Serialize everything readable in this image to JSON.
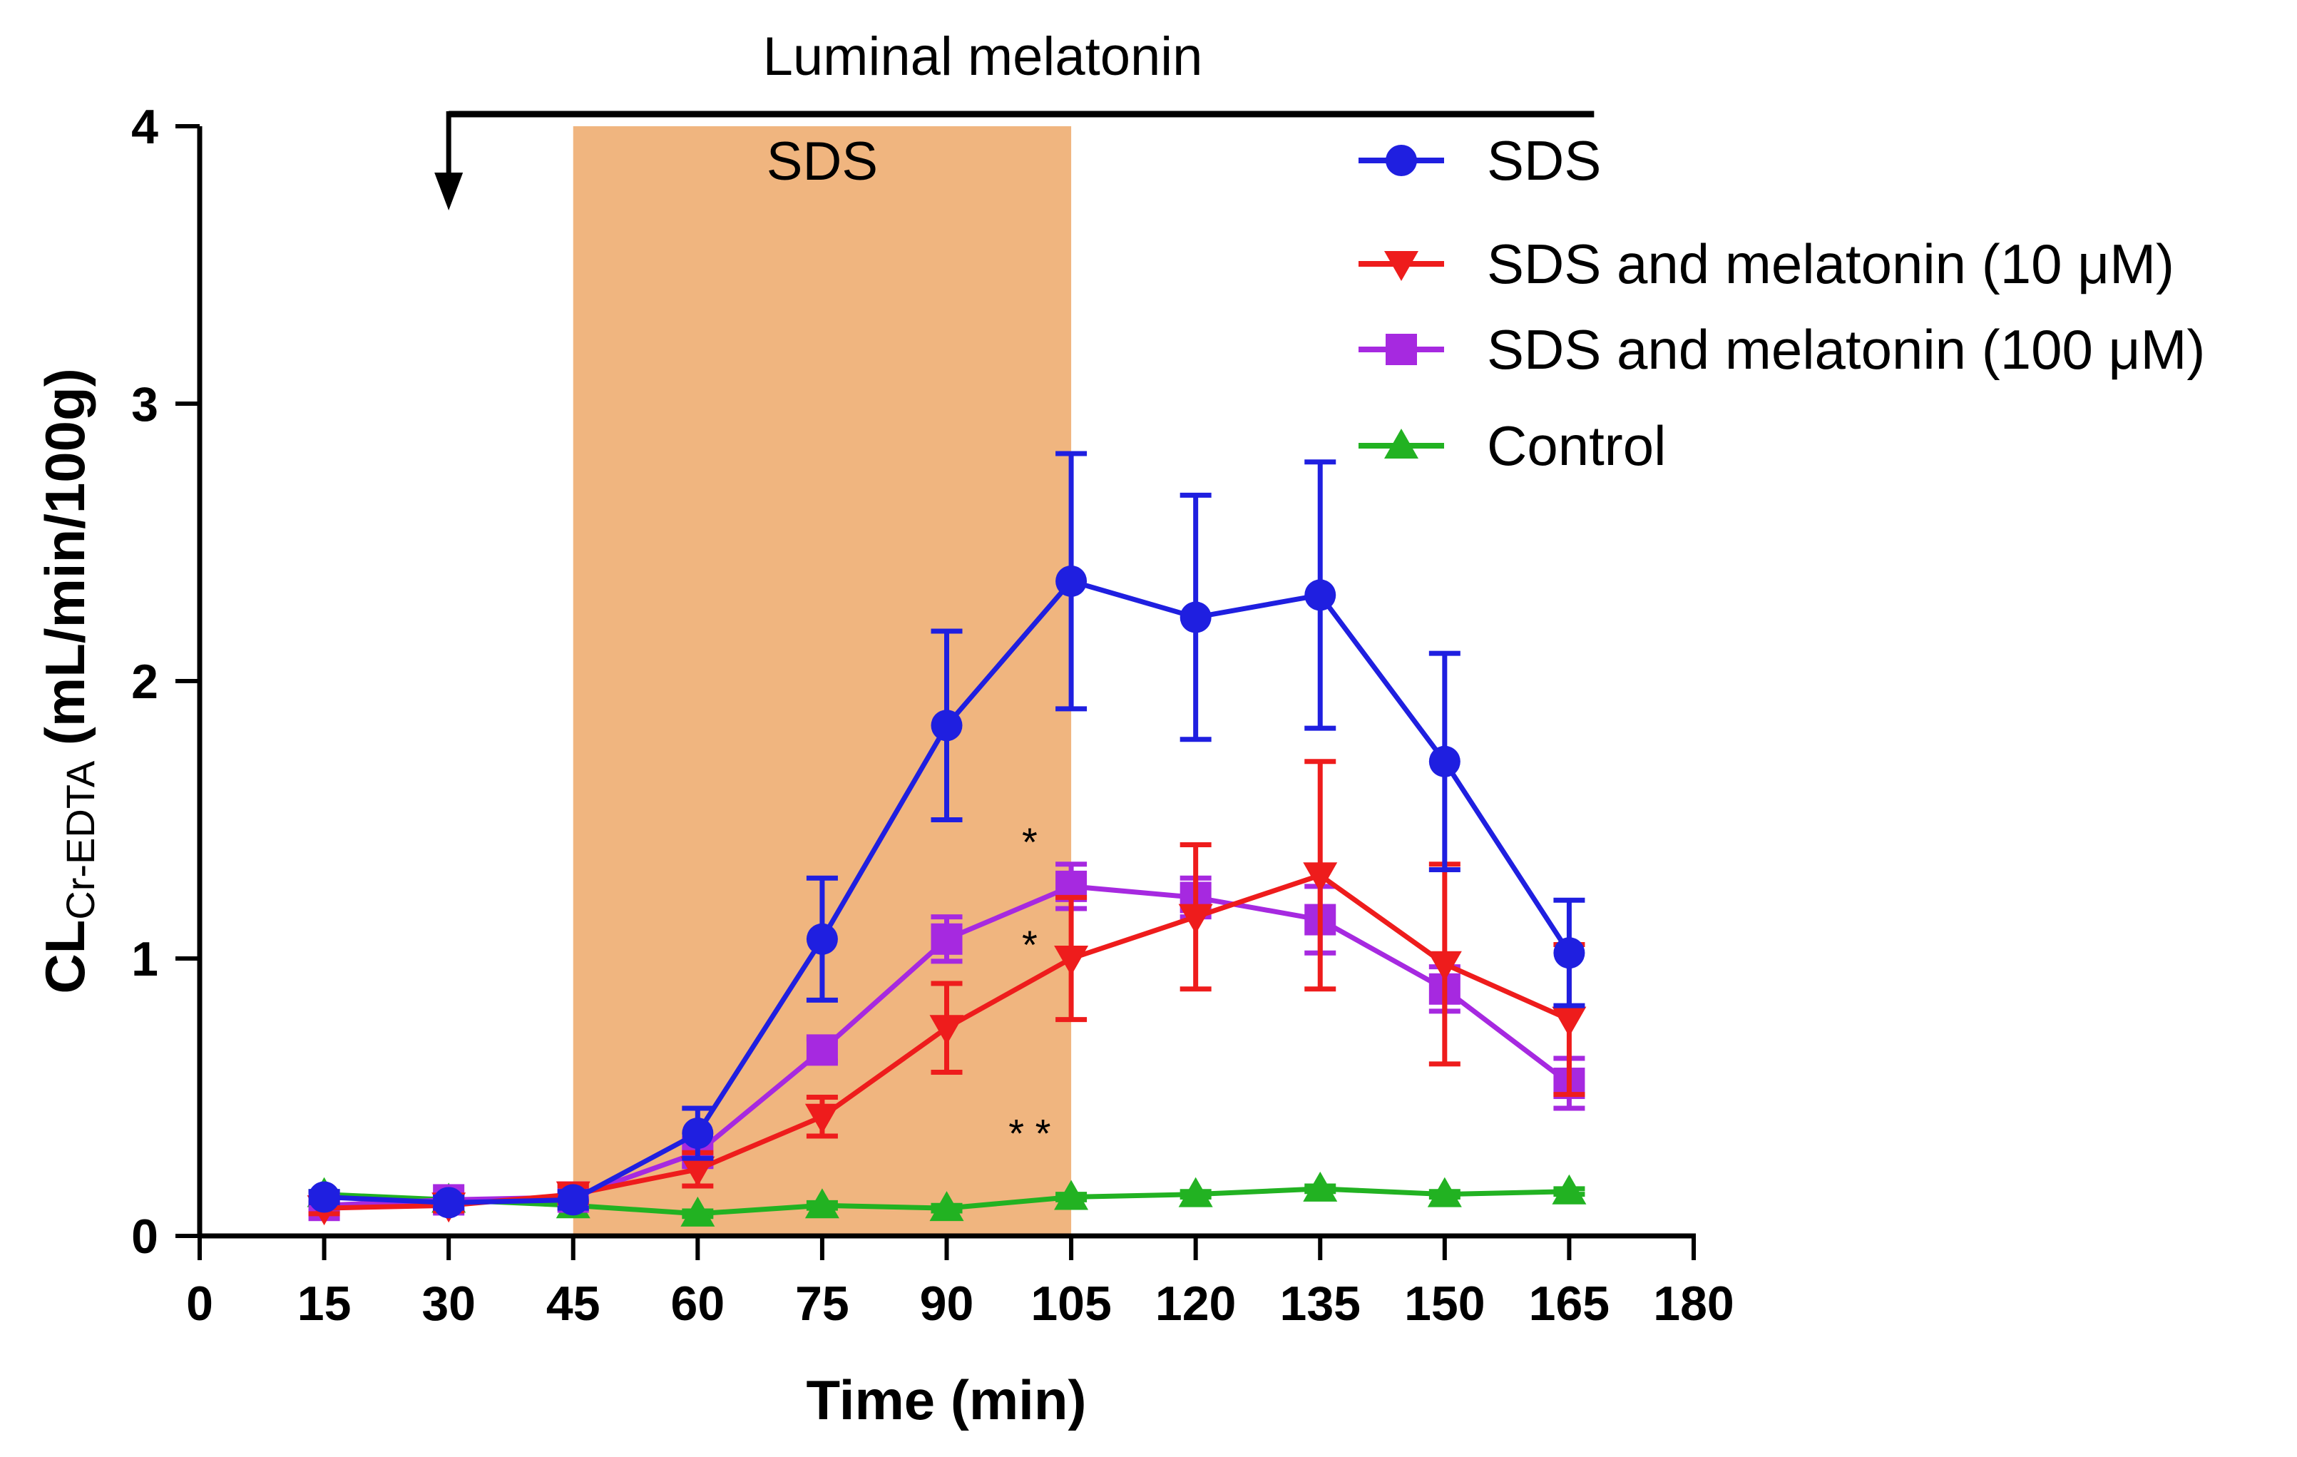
{
  "chart_data": {
    "type": "line",
    "title": "",
    "xlabel": "Time (min)",
    "ylabel_main": "CL",
    "ylabel_sub": "Cr-EDTA",
    "ylabel_units": " (mL/min/100g)",
    "xlim": [
      0,
      180
    ],
    "ylim": [
      0,
      4
    ],
    "xticks": [
      0,
      15,
      30,
      45,
      60,
      75,
      90,
      105,
      120,
      135,
      150,
      165,
      180
    ],
    "yticks": [
      0,
      1,
      2,
      3,
      4
    ],
    "grid": false,
    "legend_position": "top-right",
    "x": [
      15,
      30,
      45,
      60,
      75,
      90,
      105,
      120,
      135,
      150,
      165
    ],
    "series": [
      {
        "name": "SDS",
        "color": "#1f1fe0",
        "marker": "circle",
        "values": [
          0.14,
          0.12,
          0.13,
          0.37,
          1.07,
          1.84,
          2.36,
          2.23,
          2.31,
          1.71,
          1.02
        ],
        "errors": [
          0.02,
          0.02,
          0.03,
          0.09,
          0.22,
          0.34,
          0.46,
          0.44,
          0.48,
          0.39,
          0.19
        ]
      },
      {
        "name": "SDS and melatonin (10 μM)",
        "color": "#ee1c1c",
        "marker": "triangle-down",
        "values": [
          0.1,
          0.11,
          0.15,
          0.24,
          0.43,
          0.75,
          1.0,
          1.15,
          1.3,
          0.98,
          0.78
        ],
        "errors": [
          0.02,
          0.02,
          0.03,
          0.06,
          0.07,
          0.16,
          0.22,
          0.26,
          0.41,
          0.36,
          0.27
        ]
      },
      {
        "name": "SDS and melatonin (100 μM)",
        "color": "#a629e0",
        "marker": "square",
        "values": [
          0.11,
          0.13,
          0.14,
          0.3,
          0.67,
          1.07,
          1.26,
          1.22,
          1.14,
          0.89,
          0.55
        ],
        "errors": [
          0.02,
          0.02,
          0.02,
          0.05,
          0.04,
          0.08,
          0.08,
          0.07,
          0.12,
          0.08,
          0.09
        ]
      },
      {
        "name": "Control",
        "color": "#22b222",
        "marker": "triangle-up",
        "values": [
          0.15,
          0.13,
          0.11,
          0.08,
          0.11,
          0.1,
          0.14,
          0.15,
          0.17,
          0.15,
          0.16
        ],
        "errors": [
          0.01,
          0.01,
          0.01,
          0.01,
          0.01,
          0.01,
          0.01,
          0.01,
          0.01,
          0.01,
          0.01
        ]
      }
    ],
    "shaded_region": {
      "label": "SDS",
      "x_start": 45,
      "x_end": 105,
      "color": "#f0b57f"
    },
    "treatment_bar": {
      "label": "Luminal  melatonin",
      "x_start": 30,
      "x_end": 168
    },
    "significance": [
      {
        "text": "*",
        "x": 100,
        "y": 1.37
      },
      {
        "text": "*",
        "x": 100,
        "y": 1.0
      },
      {
        "text": "* *",
        "x": 100,
        "y": 0.32
      }
    ]
  }
}
